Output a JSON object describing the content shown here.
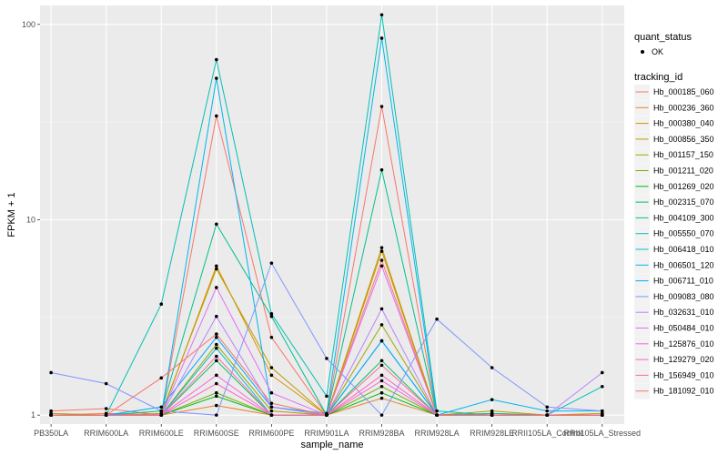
{
  "chart_data": {
    "type": "line",
    "xlabel": "sample_name",
    "ylabel": "FPKM + 1",
    "y_scale": "log10",
    "ylim": [
      0.9,
      125
    ],
    "y_ticks": [
      1,
      10,
      100
    ],
    "y_tick_labels": [
      "1",
      "10",
      "100"
    ],
    "grid": true,
    "legend_position": "right",
    "categories": [
      "PB350LA",
      "RRIM600LA",
      "RRIM600LE",
      "RRIM600SE",
      "RRIM600PE",
      "RRIM901LA",
      "RRIM928BA",
      "RRIM928LA",
      "RRIM928LE",
      "RRII105LA_Control",
      "RRII105LA_Stressed"
    ],
    "shape_legend": {
      "title": "quant_status",
      "items": [
        {
          "label": "OK",
          "color": "#000000"
        }
      ]
    },
    "color_legend": {
      "title": "tracking_id"
    },
    "series": [
      {
        "name": "Hb_000185_060",
        "color": "#F8766D",
        "values": [
          1.05,
          1.08,
          1.0,
          34.0,
          2.5,
          1.0,
          38.0,
          1.0,
          1.02,
          1.0,
          1.0
        ]
      },
      {
        "name": "Hb_000236_360",
        "color": "#E9842C",
        "values": [
          1.0,
          1.02,
          1.0,
          1.12,
          1.0,
          1.0,
          1.22,
          1.0,
          1.0,
          1.0,
          1.0
        ]
      },
      {
        "name": "Hb_000380_040",
        "color": "#D69100",
        "values": [
          1.0,
          1.0,
          1.0,
          5.8,
          1.6,
          1.0,
          6.9,
          1.0,
          1.0,
          1.0,
          1.0
        ]
      },
      {
        "name": "Hb_000856_350",
        "color": "#BC9D00",
        "values": [
          1.0,
          1.0,
          1.02,
          5.6,
          1.75,
          1.0,
          7.2,
          1.0,
          1.05,
          1.0,
          1.02
        ]
      },
      {
        "name": "Hb_001157_150",
        "color": "#9CA700",
        "values": [
          1.02,
          1.0,
          1.0,
          2.3,
          1.05,
          1.0,
          2.9,
          1.0,
          1.0,
          1.0,
          1.0
        ]
      },
      {
        "name": "Hb_001211_020",
        "color": "#6FB000",
        "values": [
          1.0,
          1.0,
          1.0,
          1.3,
          1.0,
          1.0,
          1.4,
          1.0,
          1.0,
          1.0,
          1.0
        ]
      },
      {
        "name": "Hb_001269_020",
        "color": "#00B813",
        "values": [
          1.0,
          1.0,
          1.0,
          1.25,
          1.0,
          1.0,
          1.3,
          1.0,
          1.0,
          1.0,
          1.0
        ]
      },
      {
        "name": "Hb_002315_070",
        "color": "#00BD61",
        "values": [
          1.0,
          1.0,
          1.0,
          1.9,
          1.0,
          1.0,
          1.9,
          1.0,
          1.0,
          1.0,
          1.0
        ]
      },
      {
        "name": "Hb_004109_300",
        "color": "#00C08E",
        "values": [
          1.0,
          1.0,
          1.05,
          9.5,
          3.2,
          1.0,
          18.0,
          1.0,
          1.02,
          1.0,
          1.0
        ]
      },
      {
        "name": "Hb_005550_070",
        "color": "#00C0B4",
        "values": [
          1.0,
          1.0,
          3.7,
          66.0,
          3.3,
          1.25,
          112.0,
          1.05,
          1.0,
          1.0,
          1.4
        ]
      },
      {
        "name": "Hb_006418_010",
        "color": "#00BDD4",
        "values": [
          1.0,
          1.0,
          1.0,
          2.2,
          1.0,
          1.0,
          2.4,
          1.0,
          1.0,
          1.0,
          1.0
        ]
      },
      {
        "name": "Hb_006501_120",
        "color": "#00B5EE",
        "values": [
          1.0,
          1.0,
          1.0,
          53.0,
          1.1,
          1.02,
          85.0,
          1.0,
          1.2,
          1.05,
          1.05
        ]
      },
      {
        "name": "Hb_006711_010",
        "color": "#00A7FF",
        "values": [
          1.0,
          1.0,
          1.1,
          2.5,
          1.1,
          1.0,
          2.4,
          1.0,
          1.0,
          1.0,
          1.0
        ]
      },
      {
        "name": "Hb_009083_080",
        "color": "#7F96FF",
        "values": [
          1.65,
          1.45,
          1.05,
          1.0,
          6.0,
          1.95,
          1.0,
          3.1,
          1.75,
          1.1,
          1.05
        ]
      },
      {
        "name": "Hb_032631_010",
        "color": "#BC81FF",
        "values": [
          1.0,
          1.0,
          1.0,
          3.2,
          1.1,
          1.0,
          3.5,
          1.0,
          1.0,
          1.0,
          1.65
        ]
      },
      {
        "name": "Hb_050484_010",
        "color": "#E26EF7",
        "values": [
          1.0,
          1.0,
          1.0,
          4.5,
          1.3,
          1.0,
          5.8,
          1.0,
          1.0,
          1.0,
          1.0
        ]
      },
      {
        "name": "Hb_125876_010",
        "color": "#F863DF",
        "values": [
          1.0,
          1.0,
          1.0,
          1.6,
          1.0,
          1.0,
          1.5,
          1.0,
          1.0,
          1.0,
          1.0
        ]
      },
      {
        "name": "Hb_129279_020",
        "color": "#FF62BF",
        "values": [
          1.0,
          1.0,
          1.0,
          1.45,
          1.0,
          1.0,
          1.6,
          1.0,
          1.0,
          1.0,
          1.0
        ]
      },
      {
        "name": "Hb_156949_010",
        "color": "#FF6A9A",
        "values": [
          1.0,
          1.0,
          1.0,
          2.0,
          1.0,
          1.0,
          1.8,
          1.0,
          1.0,
          1.0,
          1.0
        ]
      },
      {
        "name": "Hb_181092_010",
        "color": "#F8766D",
        "values": [
          1.0,
          1.0,
          1.55,
          2.6,
          1.15,
          1.0,
          6.2,
          1.0,
          1.0,
          1.0,
          1.0
        ]
      }
    ]
  }
}
